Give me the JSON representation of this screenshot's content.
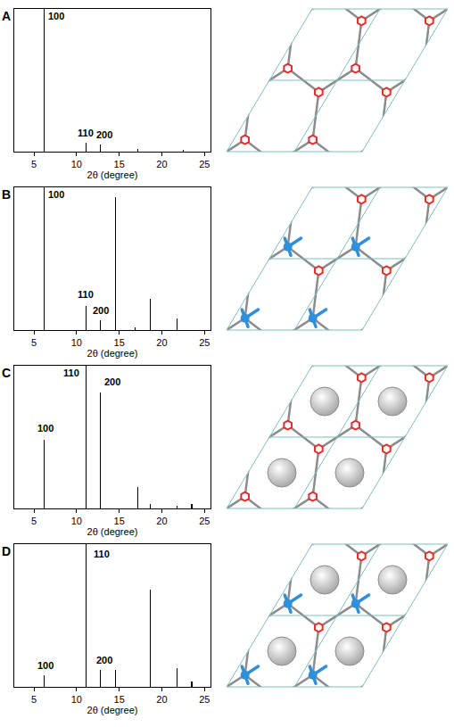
{
  "chart_data": [
    {
      "type": "bar",
      "panel": "A",
      "color": "#000000",
      "x": [
        6.2,
        11.1,
        12.8,
        17.2,
        22.5
      ],
      "values": [
        100,
        6,
        5,
        2,
        1
      ],
      "xlim": [
        2.7,
        25.7
      ],
      "xticks": [
        5,
        10,
        15,
        20,
        25
      ],
      "ylim": [
        0,
        100
      ],
      "x_label": "2θ (degree)",
      "tick_labels": "x",
      "annotations": [
        {
          "text": "100",
          "x": 7.6,
          "y": 90
        },
        {
          "text": "110",
          "x": 11.1,
          "y": 8
        },
        {
          "text": "200",
          "x": 13.3,
          "y": 7
        }
      ]
    },
    {
      "type": "bar",
      "panel": "B",
      "color": "#000000",
      "x": [
        6.2,
        11.1,
        12.8,
        14.6,
        16.9,
        18.6,
        21.8
      ],
      "values": [
        100,
        17,
        7,
        93,
        2,
        22,
        8
      ],
      "xlim": [
        2.7,
        25.7
      ],
      "xticks": [
        5,
        10,
        15,
        20,
        25
      ],
      "ylim": [
        0,
        100
      ],
      "x_label": "2θ (degree)",
      "tick_labels": "x",
      "annotations": [
        {
          "text": "100",
          "x": 7.6,
          "y": 90
        },
        {
          "text": "110",
          "x": 11.1,
          "y": 20
        },
        {
          "text": "200",
          "x": 12.8,
          "y": 9
        }
      ]
    },
    {
      "type": "bar",
      "panel": "C",
      "color": "#000000",
      "x": [
        6.2,
        11.1,
        12.8,
        17.2,
        18.6,
        21.8,
        23.5
      ],
      "values": [
        48,
        100,
        81,
        15,
        3,
        2,
        3
      ],
      "xlim": [
        2.7,
        25.7
      ],
      "xticks": [
        5,
        10,
        15,
        20,
        25
      ],
      "ylim": [
        0,
        100
      ],
      "x_label": "2θ (degree)",
      "tick_labels": "x",
      "annotations": [
        {
          "text": "100",
          "x": 6.4,
          "y": 51
        },
        {
          "text": "110",
          "x": 9.4,
          "y": 90
        },
        {
          "text": "200",
          "x": 14.2,
          "y": 84
        }
      ]
    },
    {
      "type": "bar",
      "panel": "D",
      "color": "#000000",
      "x": [
        6.2,
        11.1,
        12.8,
        14.6,
        18.6,
        21.8,
        23.5
      ],
      "values": [
        8,
        100,
        12,
        12,
        68,
        13,
        4
      ],
      "xlim": [
        2.7,
        25.7
      ],
      "xticks": [
        5,
        10,
        15,
        20,
        25
      ],
      "ylim": [
        0,
        100
      ],
      "x_label": "2θ (degree)",
      "tick_labels": "x",
      "annotations": [
        {
          "text": "100",
          "x": 6.4,
          "y": 10
        },
        {
          "text": "110",
          "x": 12.9,
          "y": 88
        },
        {
          "text": "200",
          "x": 13.3,
          "y": 14
        }
      ]
    }
  ]
}
